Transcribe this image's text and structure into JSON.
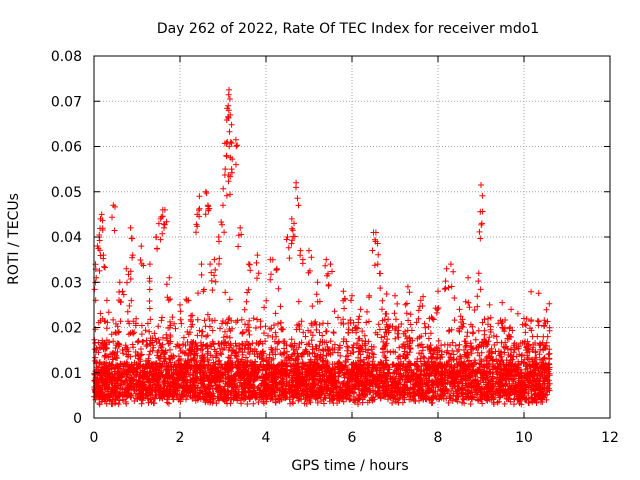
{
  "chart_data": {
    "type": "scatter",
    "title": "Day 262 of 2022, Rate Of TEC Index for receiver mdo1",
    "xlabel": "GPS time / hours",
    "ylabel": "ROTI / TECUs",
    "xlim": [
      0,
      12
    ],
    "ylim": [
      0,
      0.08
    ],
    "x_ticks": [
      "0",
      "2",
      "4",
      "6",
      "8",
      "10",
      "12"
    ],
    "y_ticks": [
      "0",
      "0.01",
      "0.02",
      "0.03",
      "0.04",
      "0.05",
      "0.06",
      "0.07",
      "0.08"
    ],
    "grid": true,
    "marker": "+",
    "color": "#ff0000",
    "series": [
      {
        "name": "ROTI",
        "points": [
          [
            0.05,
            0.031
          ],
          [
            0.08,
            0.038
          ],
          [
            0.12,
            0.04
          ],
          [
            0.15,
            0.044
          ],
          [
            0.18,
            0.045
          ],
          [
            0.22,
            0.036
          ],
          [
            0.3,
            0.026
          ],
          [
            0.45,
            0.047
          ],
          [
            0.6,
            0.03
          ],
          [
            0.75,
            0.033
          ],
          [
            0.85,
            0.042
          ],
          [
            0.9,
            0.036
          ],
          [
            1.1,
            0.038
          ],
          [
            1.3,
            0.034
          ],
          [
            1.45,
            0.04
          ],
          [
            1.55,
            0.044
          ],
          [
            1.6,
            0.046
          ],
          [
            1.65,
            0.046
          ],
          [
            1.75,
            0.031
          ],
          [
            2.0,
            0.025
          ],
          [
            2.2,
            0.026
          ],
          [
            2.4,
            0.045
          ],
          [
            2.45,
            0.049
          ],
          [
            2.5,
            0.034
          ],
          [
            2.6,
            0.05
          ],
          [
            2.65,
            0.047
          ],
          [
            2.7,
            0.034
          ],
          [
            2.8,
            0.035
          ],
          [
            2.9,
            0.04
          ],
          [
            3.0,
            0.047
          ],
          [
            3.05,
            0.055
          ],
          [
            3.08,
            0.058
          ],
          [
            3.1,
            0.061
          ],
          [
            3.12,
            0.069
          ],
          [
            3.14,
            0.0725
          ],
          [
            3.16,
            0.0705
          ],
          [
            3.18,
            0.061
          ],
          [
            3.2,
            0.055
          ],
          [
            3.3,
            0.0615
          ],
          [
            3.4,
            0.042
          ],
          [
            3.6,
            0.034
          ],
          [
            3.8,
            0.036
          ],
          [
            4.1,
            0.035
          ],
          [
            4.25,
            0.033
          ],
          [
            4.5,
            0.04
          ],
          [
            4.6,
            0.044
          ],
          [
            4.65,
            0.043
          ],
          [
            4.7,
            0.052
          ],
          [
            4.8,
            0.037
          ],
          [
            5.0,
            0.037
          ],
          [
            5.2,
            0.03
          ],
          [
            5.4,
            0.035
          ],
          [
            5.5,
            0.034
          ],
          [
            5.8,
            0.028
          ],
          [
            6.0,
            0.027
          ],
          [
            6.2,
            0.024
          ],
          [
            6.4,
            0.027
          ],
          [
            6.5,
            0.041
          ],
          [
            6.55,
            0.039
          ],
          [
            6.6,
            0.034
          ],
          [
            6.8,
            0.023
          ],
          [
            7.0,
            0.027
          ],
          [
            7.3,
            0.029
          ],
          [
            7.6,
            0.026
          ],
          [
            7.8,
            0.022
          ],
          [
            8.0,
            0.028
          ],
          [
            8.2,
            0.033
          ],
          [
            8.3,
            0.034
          ],
          [
            8.5,
            0.024
          ],
          [
            8.7,
            0.031
          ],
          [
            8.95,
            0.032
          ],
          [
            9.0,
            0.0515
          ],
          [
            9.02,
            0.043
          ],
          [
            9.2,
            0.025
          ],
          [
            9.5,
            0.02
          ],
          [
            9.7,
            0.024
          ],
          [
            10.0,
            0.022
          ],
          [
            10.2,
            0.018
          ],
          [
            10.5,
            0.021
          ],
          [
            10.55,
            0.018
          ]
        ]
      }
    ],
    "note": "Dense background points between 0.002 and 0.020 TECU across 0–10.6 h are generated procedurally to reproduce the texture."
  }
}
